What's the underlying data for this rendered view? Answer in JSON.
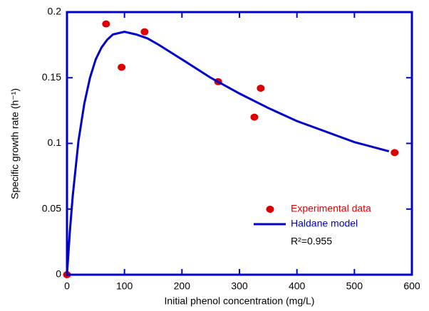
{
  "chart_data": {
    "type": "scatter",
    "xlabel": "Initial phenol concentration (mg/L)",
    "ylabel": "Specific growth rate (h⁻¹)",
    "xlim": [
      0,
      600
    ],
    "xticks": [
      0,
      100,
      200,
      300,
      400,
      500,
      600
    ],
    "ylim": [
      0,
      0.2
    ],
    "yticks": [
      0,
      0.05,
      0.1,
      0.15,
      0.2
    ],
    "frame_color": "#0000cc",
    "legend": "lower right",
    "series": [
      {
        "name": "Experimental data",
        "kind": "scatter",
        "color": "#dd0000",
        "x": [
          0,
          68,
          95,
          135,
          263,
          326,
          337,
          570
        ],
        "values": [
          0,
          0.191,
          0.158,
          0.185,
          0.147,
          0.12,
          0.142,
          0.093
        ]
      },
      {
        "name": "Haldane model",
        "kind": "line",
        "color": "#0000cc",
        "x": [
          0,
          5,
          10,
          20,
          30,
          40,
          50,
          60,
          70,
          80,
          90,
          100,
          120,
          140,
          160,
          200,
          250,
          300,
          350,
          400,
          450,
          500,
          560
        ],
        "values": [
          0,
          0.033,
          0.06,
          0.102,
          0.13,
          0.15,
          0.164,
          0.173,
          0.179,
          0.183,
          0.184,
          0.185,
          0.183,
          0.18,
          0.175,
          0.164,
          0.15,
          0.138,
          0.127,
          0.117,
          0.109,
          0.101,
          0.094
        ]
      }
    ],
    "annotations": [
      "R²=0.955"
    ]
  }
}
